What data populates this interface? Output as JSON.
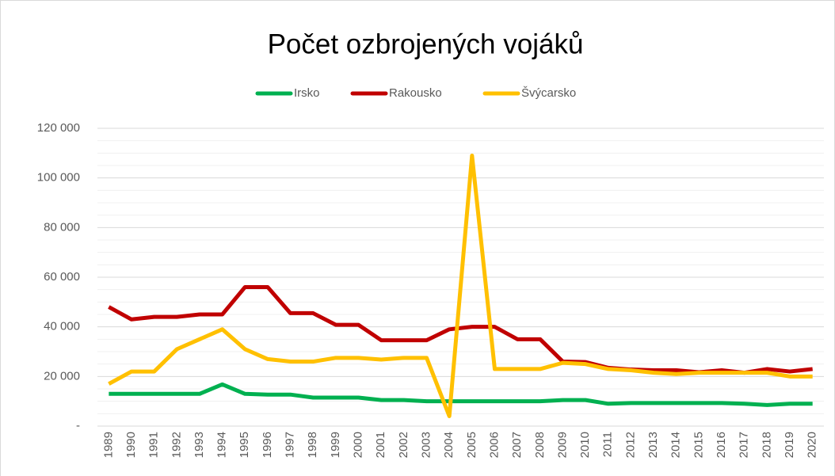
{
  "chart_data": {
    "type": "line",
    "title": "Počet ozbrojených vojáků",
    "categories": [
      "1989",
      "1990",
      "1991",
      "1992",
      "1993",
      "1994",
      "1995",
      "1996",
      "1997",
      "1998",
      "1999",
      "2000",
      "2001",
      "2002",
      "2003",
      "2004",
      "2005",
      "2006",
      "2007",
      "2008",
      "2009",
      "2010",
      "2011",
      "2012",
      "2013",
      "2014",
      "2015",
      "2016",
      "2017",
      "2018",
      "2019",
      "2020"
    ],
    "series": [
      {
        "name": "Irsko",
        "color": "#00b050",
        "values": [
          13000,
          13000,
          13000,
          13000,
          13000,
          16800,
          13000,
          12700,
          12700,
          11500,
          11500,
          11500,
          10500,
          10500,
          10000,
          10000,
          10000,
          10000,
          10000,
          10000,
          10500,
          10500,
          9000,
          9300,
          9300,
          9300,
          9300,
          9300,
          9000,
          8500,
          9000,
          9000
        ]
      },
      {
        "name": "Rakousko",
        "color": "#c00000",
        "values": [
          48000,
          43000,
          44000,
          44000,
          45000,
          45000,
          56000,
          56000,
          45500,
          45500,
          40800,
          40800,
          34600,
          34600,
          34600,
          39000,
          40000,
          40000,
          35000,
          35000,
          26000,
          25800,
          23500,
          22800,
          22500,
          22500,
          21700,
          22500,
          21500,
          23000,
          22000,
          23000
        ]
      },
      {
        "name": "Švýcarsko",
        "color": "#ffc000",
        "values": [
          17000,
          22000,
          22000,
          31000,
          35000,
          39000,
          31000,
          27000,
          26000,
          26000,
          27500,
          27500,
          26800,
          27500,
          27500,
          4000,
          109000,
          23000,
          23000,
          23000,
          25500,
          25000,
          23000,
          22500,
          21500,
          21000,
          21500,
          21500,
          21500,
          21500,
          20000,
          20000
        ]
      }
    ],
    "ylim": [
      0,
      120000
    ],
    "yticks": [
      {
        "value": 0,
        "label": "-"
      },
      {
        "value": 20000,
        "label": "20 000"
      },
      {
        "value": 40000,
        "label": "40 000"
      },
      {
        "value": 60000,
        "label": "60 000"
      },
      {
        "value": 80000,
        "label": "80 000"
      },
      {
        "value": 100000,
        "label": "100 000"
      },
      {
        "value": 120000,
        "label": "120 000"
      }
    ],
    "minor_yticks": [
      5000,
      10000,
      15000,
      25000,
      30000,
      35000,
      45000,
      50000,
      55000,
      65000,
      70000,
      75000,
      85000,
      90000,
      95000,
      105000,
      110000,
      115000
    ],
    "grid": true,
    "legend": "top"
  }
}
